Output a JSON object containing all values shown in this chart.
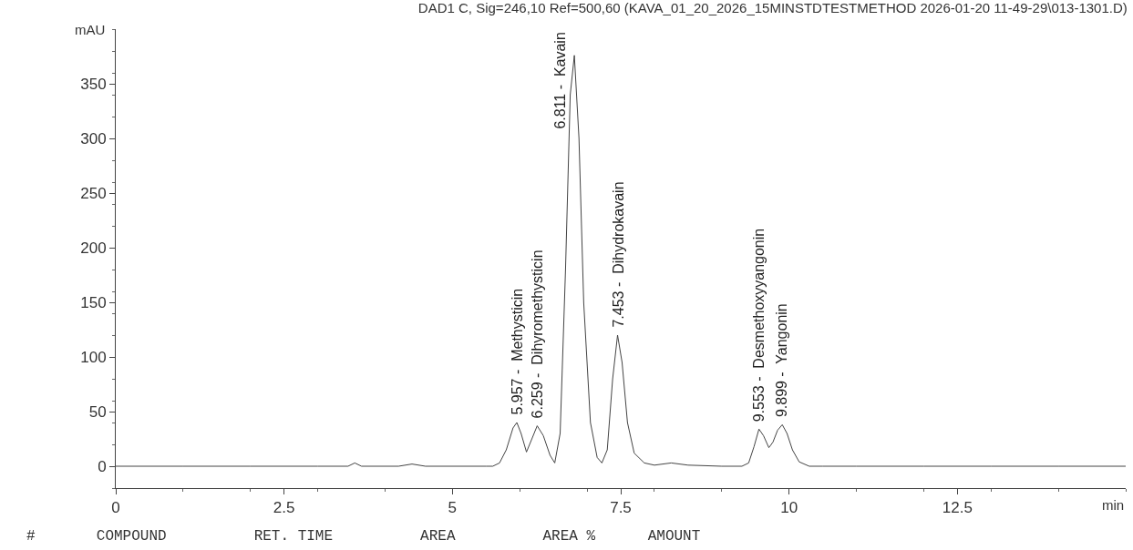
{
  "chart_data": {
    "type": "line",
    "title": "DAD1 C, Sig=246,10 Ref=500,60 (KAVA_01_20_2026_15MINSTDTESTMETHOD 2026-01-20 11-49-29\\013-1301.D)",
    "xlabel": "min",
    "ylabel": "mAU",
    "x": [
      0,
      1,
      2,
      3,
      3.45,
      3.55,
      3.65,
      4.2,
      4.4,
      4.6,
      5.5,
      5.6,
      5.7,
      5.8,
      5.9,
      5.957,
      6.02,
      6.1,
      6.18,
      6.259,
      6.35,
      6.45,
      6.52,
      6.6,
      6.68,
      6.75,
      6.811,
      6.88,
      6.95,
      7.05,
      7.15,
      7.22,
      7.3,
      7.38,
      7.453,
      7.52,
      7.6,
      7.7,
      7.85,
      8,
      8.25,
      8.5,
      9,
      9.3,
      9.4,
      9.48,
      9.553,
      9.62,
      9.7,
      9.76,
      9.83,
      9.899,
      9.97,
      10.05,
      10.15,
      10.3,
      10.5,
      11,
      12,
      13,
      14,
      15
    ],
    "series": [
      {
        "color": "#444444",
        "values": [
          0,
          0,
          0,
          0,
          0,
          3,
          0,
          0,
          2,
          0,
          0,
          0,
          3,
          15,
          35,
          40,
          30,
          13,
          25,
          37,
          28,
          10,
          3,
          30,
          180,
          340,
          376,
          300,
          150,
          40,
          8,
          3,
          15,
          80,
          120,
          95,
          40,
          12,
          3,
          1,
          3,
          1,
          0,
          0,
          3,
          18,
          34,
          28,
          17,
          22,
          33,
          38,
          30,
          15,
          4,
          0,
          0,
          0,
          0,
          0,
          0,
          0
        ]
      }
    ],
    "xlim": [
      0,
      15
    ],
    "xticks": [
      0,
      2.5,
      5,
      7.5,
      10,
      12.5
    ],
    "ylim": [
      -20,
      400
    ],
    "yticks": [
      0,
      50,
      100,
      150,
      200,
      250,
      300,
      350
    ],
    "grid": false,
    "marker": "none",
    "line_style": "solid",
    "annotations": [
      {
        "text": "5.957 -  Methysticin",
        "x": 5.957,
        "y": 40
      },
      {
        "text": "6.259 -  Dihyromethysticin",
        "x": 6.259,
        "y": 37
      },
      {
        "text": "6.811 -  Kavain",
        "x": 6.811,
        "y": 376
      },
      {
        "text": "7.453 -  Dihydrokavain",
        "x": 7.453,
        "y": 120
      },
      {
        "text": "9.553 -  Desmethoxyyangonin",
        "x": 9.553,
        "y": 34
      },
      {
        "text": "9.899 -  Yangonin",
        "x": 9.899,
        "y": 38
      },
      "#       COMPOUND          RET. TIME          AREA          AREA %      AMOUNT"
    ]
  }
}
